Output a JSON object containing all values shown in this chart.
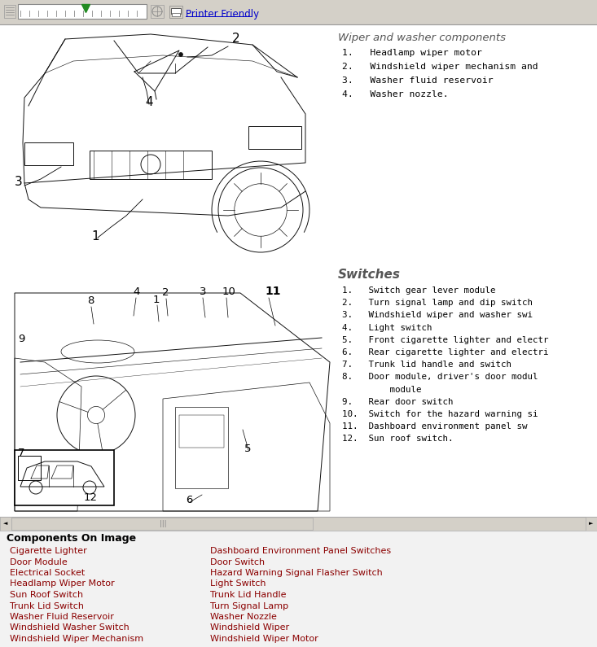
{
  "bg_color": "#e8e8e8",
  "content_bg": "#ffffff",
  "toolbar_bg": "#d4d0c8",
  "scrollbar_bg": "#d4d0c8",
  "title1": "Wiper and washer components",
  "title2": "Switches",
  "wiper_items": [
    "1.   Headlamp wiper motor",
    "2.   Windshield wiper mechanism and",
    "3.   Washer fluid reservoir",
    "4.   Washer nozzle."
  ],
  "switch_items": [
    "1.   Switch gear lever module",
    "2.   Turn signal lamp and dip switch",
    "3.   Windshield wiper and washer swi",
    "4.   Light switch",
    "5.   Front cigarette lighter and electr",
    "6.   Rear cigarette lighter and electri",
    "7.   Trunk lid handle and switch",
    "8.   Door module, driver's door modul",
    "         module",
    "9.   Rear door switch",
    "10.  Switch for the hazard warning si",
    "11.  Dashboard environment panel sw",
    "12.  Sun roof switch."
  ],
  "components_title": "Components On Image",
  "components_left": [
    "Cigarette Lighter",
    "Door Module",
    "Electrical Socket",
    "Headlamp Wiper Motor",
    "Sun Roof Switch",
    "Trunk Lid Switch",
    "Washer Fluid Reservoir",
    "Windshield Washer Switch",
    "Windshield Wiper Mechanism"
  ],
  "components_right": [
    "Dashboard Environment Panel Switches",
    "Door Switch",
    "Hazard Warning Signal Flasher Switch",
    "Light Switch",
    "Trunk Lid Handle",
    "Turn Signal Lamp",
    "Washer Nozzle",
    "Windshield Wiper",
    "Windshield Wiper Motor"
  ],
  "link_color": "#8b0000",
  "title_color": "#555555",
  "text_color": "#000000",
  "toolbar_link_color": "#0000cc",
  "printer_friendly": "Printer Friendly"
}
